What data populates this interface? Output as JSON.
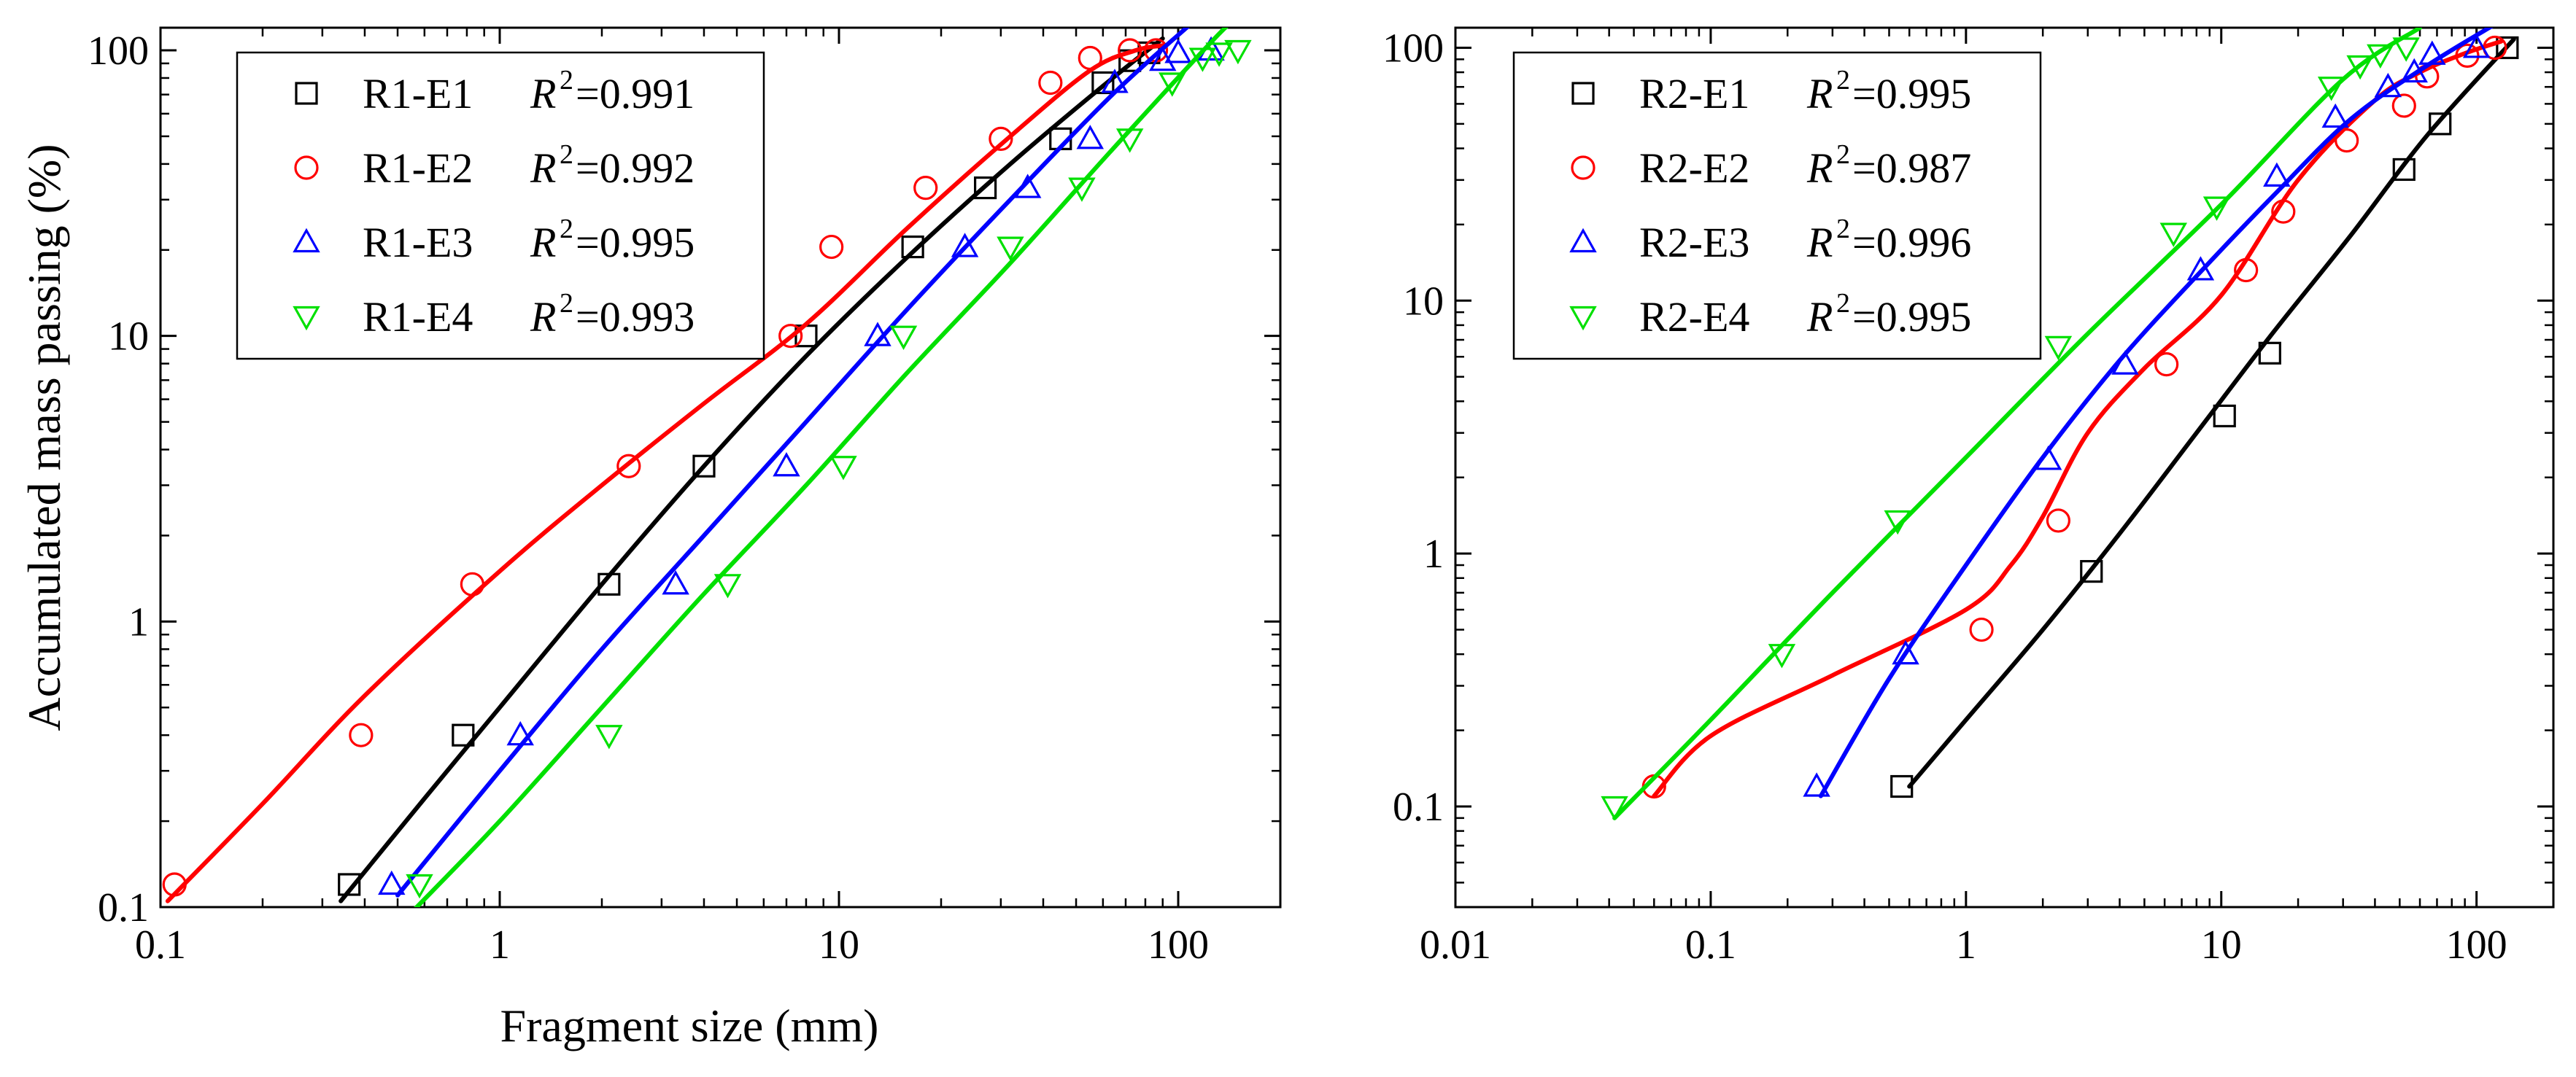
{
  "figure": {
    "ylabel": "Accumulated mass passing (%)",
    "xlabel": "Fragment size (mm)"
  },
  "chart_data": [
    {
      "type": "scatter",
      "panel": "left",
      "xlabel": "Fragment size (mm)",
      "ylabel": "Accumulated mass passing (%)",
      "xscale": "log",
      "yscale": "log",
      "xlim": [
        0.1,
        200
      ],
      "ylim": [
        0.1,
        120
      ],
      "xticks": [
        "0.1",
        "1",
        "10",
        "100"
      ],
      "yticks": [
        "0.1",
        "1",
        "10",
        "100"
      ],
      "legend_position": "top-left",
      "grid": false,
      "series": [
        {
          "name": "R1-E1",
          "r2_label": "R",
          "r2_value": "=0.991",
          "marker": "square",
          "color": "#000000",
          "points": [
            [
              0.36,
              0.12
            ],
            [
              0.78,
              0.4
            ],
            [
              2.1,
              1.35
            ],
            [
              4.0,
              3.5
            ],
            [
              8.0,
              10
            ],
            [
              16.5,
              20.5
            ],
            [
              27,
              33
            ],
            [
              45,
              49
            ],
            [
              60,
              77
            ],
            [
              72,
              92
            ],
            [
              82,
              98
            ]
          ],
          "fit": [
            [
              0.34,
              0.105
            ],
            [
              0.6,
              0.24
            ],
            [
              1.0,
              0.5
            ],
            [
              2.0,
              1.35
            ],
            [
              4.0,
              3.5
            ],
            [
              8.0,
              8.5
            ],
            [
              16,
              19
            ],
            [
              32,
              40
            ],
            [
              60,
              75
            ],
            [
              90,
              110
            ]
          ]
        },
        {
          "name": "R1-E2",
          "r2_label": "R",
          "r2_value": "=0.992",
          "marker": "circle",
          "color": "#ff0000",
          "points": [
            [
              0.11,
              0.12
            ],
            [
              0.39,
              0.4
            ],
            [
              0.83,
              1.35
            ],
            [
              2.4,
              3.5
            ],
            [
              7.2,
              10
            ],
            [
              9.5,
              20.5
            ],
            [
              18,
              33
            ],
            [
              30,
              49
            ],
            [
              42,
              77
            ],
            [
              55,
              94
            ],
            [
              72,
              100
            ],
            [
              86,
              100
            ]
          ],
          "fit": [
            [
              0.105,
              0.105
            ],
            [
              0.2,
              0.23
            ],
            [
              0.4,
              0.55
            ],
            [
              1.0,
              1.5
            ],
            [
              2.0,
              3.0
            ],
            [
              4.0,
              5.8
            ],
            [
              8.0,
              11
            ],
            [
              16,
              24
            ],
            [
              32,
              50
            ],
            [
              55,
              85
            ],
            [
              75,
              100
            ],
            [
              90,
              104
            ]
          ]
        },
        {
          "name": "R1-E3",
          "r2_label": "R",
          "r2_value": "=0.995",
          "marker": "triangle-up",
          "color": "#0000ff",
          "points": [
            [
              0.48,
              0.12
            ],
            [
              1.15,
              0.4
            ],
            [
              3.3,
              1.35
            ],
            [
              7.0,
              3.5
            ],
            [
              13,
              10
            ],
            [
              23.5,
              20.5
            ],
            [
              36,
              33
            ],
            [
              55,
              49
            ],
            [
              65,
              77
            ],
            [
              90,
              92
            ],
            [
              100,
              98
            ],
            [
              125,
              100
            ]
          ],
          "fit": [
            [
              0.5,
              0.11
            ],
            [
              1.0,
              0.3
            ],
            [
              2.0,
              0.8
            ],
            [
              4.0,
              2.0
            ],
            [
              8.0,
              5.0
            ],
            [
              16,
              12.5
            ],
            [
              32,
              30
            ],
            [
              64,
              70
            ],
            [
              110,
              125
            ]
          ]
        },
        {
          "name": "R1-E4",
          "r2_label": "R",
          "r2_value": "=0.993",
          "marker": "triangle-down",
          "color": "#00e000",
          "points": [
            [
              0.58,
              0.12
            ],
            [
              2.1,
              0.4
            ],
            [
              4.7,
              1.35
            ],
            [
              10.3,
              3.5
            ],
            [
              15.5,
              10
            ],
            [
              32,
              20.5
            ],
            [
              52,
              33
            ],
            [
              72,
              49
            ],
            [
              96,
              77
            ],
            [
              118,
              94
            ],
            [
              132,
              98
            ],
            [
              150,
              100
            ]
          ],
          "fit": [
            [
              0.56,
              0.098
            ],
            [
              1.0,
              0.2
            ],
            [
              2.0,
              0.5
            ],
            [
              4.0,
              1.25
            ],
            [
              8.0,
              3.0
            ],
            [
              16,
              7.5
            ],
            [
              32,
              18
            ],
            [
              64,
              45
            ],
            [
              128,
              110
            ],
            [
              145,
              125
            ]
          ]
        }
      ]
    },
    {
      "type": "scatter",
      "panel": "right",
      "xlabel": "",
      "ylabel": "",
      "xscale": "log",
      "yscale": "log",
      "xlim": [
        0.01,
        200
      ],
      "ylim": [
        0.04,
        120
      ],
      "xticks": [
        "0.01",
        "0.1",
        "1",
        "10",
        "100"
      ],
      "yticks": [
        "0.1",
        "1",
        "10",
        "100"
      ],
      "legend_position": "top-left",
      "grid": false,
      "series": [
        {
          "name": "R2-E1",
          "r2_label": "R",
          "r2_value": "=0.995",
          "marker": "square",
          "color": "#000000",
          "points": [
            [
              0.56,
              0.12
            ],
            [
              3.1,
              0.85
            ],
            [
              10.3,
              3.5
            ],
            [
              15.5,
              6.2
            ],
            [
              52,
              33
            ],
            [
              72,
              50
            ],
            [
              132,
              100
            ]
          ],
          "fit": [
            [
              0.6,
              0.12
            ],
            [
              1.0,
              0.22
            ],
            [
              2.0,
              0.5
            ],
            [
              4.0,
              1.2
            ],
            [
              8.0,
              3.0
            ],
            [
              16,
              7.5
            ],
            [
              32,
              18
            ],
            [
              64,
              45
            ],
            [
              140,
              108
            ]
          ]
        },
        {
          "name": "R2-E2",
          "r2_label": "R",
          "r2_value": "=0.987",
          "marker": "circle",
          "color": "#ff0000",
          "points": [
            [
              0.06,
              0.12
            ],
            [
              1.15,
              0.5
            ],
            [
              2.3,
              1.35
            ],
            [
              6.1,
              5.6
            ],
            [
              12.5,
              13.2
            ],
            [
              17.5,
              22.5
            ],
            [
              31,
              43
            ],
            [
              52,
              59
            ],
            [
              64,
              77
            ],
            [
              92,
              93
            ],
            [
              118,
              100
            ]
          ],
          "fit": [
            [
              0.06,
              0.11
            ],
            [
              0.1,
              0.19
            ],
            [
              0.3,
              0.33
            ],
            [
              1.0,
              0.6
            ],
            [
              1.5,
              0.9
            ],
            [
              2.0,
              1.4
            ],
            [
              3.0,
              3.0
            ],
            [
              5.0,
              5.4
            ],
            [
              10,
              10.5
            ],
            [
              20,
              30
            ],
            [
              40,
              62
            ],
            [
              60,
              80
            ],
            [
              90,
              95
            ],
            [
              125,
              106
            ]
          ]
        },
        {
          "name": "R2-E3",
          "r2_label": "R",
          "r2_value": "=0.996",
          "marker": "triangle-up",
          "color": "#0000ff",
          "points": [
            [
              0.26,
              0.12
            ],
            [
              0.58,
              0.4
            ],
            [
              2.1,
              2.35
            ],
            [
              4.2,
              5.6
            ],
            [
              8.3,
              13.2
            ],
            [
              16.5,
              31
            ],
            [
              28,
              53
            ],
            [
              45,
              70
            ],
            [
              57,
              80
            ],
            [
              67,
              94
            ],
            [
              100,
              100
            ]
          ],
          "fit": [
            [
              0.27,
              0.11
            ],
            [
              0.5,
              0.32
            ],
            [
              1.0,
              0.9
            ],
            [
              2.0,
              2.4
            ],
            [
              4.0,
              5.8
            ],
            [
              8.0,
              12.5
            ],
            [
              16,
              26
            ],
            [
              32,
              52
            ],
            [
              64,
              85
            ],
            [
              120,
              125
            ]
          ]
        },
        {
          "name": "R2-E4",
          "r2_label": "R",
          "r2_value": "=0.995",
          "marker": "triangle-down",
          "color": "#00e000",
          "points": [
            [
              0.042,
              0.1
            ],
            [
              0.19,
              0.4
            ],
            [
              0.54,
              1.35
            ],
            [
              2.3,
              6.6
            ],
            [
              6.5,
              18.5
            ],
            [
              9.6,
              23.5
            ],
            [
              27,
              70
            ],
            [
              35,
              85
            ],
            [
              42,
              94
            ],
            [
              53,
              100
            ]
          ],
          "fit": [
            [
              0.042,
              0.09
            ],
            [
              0.1,
              0.22
            ],
            [
              0.3,
              0.7
            ],
            [
              1.0,
              2.4
            ],
            [
              3.0,
              7.4
            ],
            [
              10,
              24
            ],
            [
              30,
              75
            ],
            [
              60,
              120
            ]
          ]
        }
      ]
    }
  ]
}
